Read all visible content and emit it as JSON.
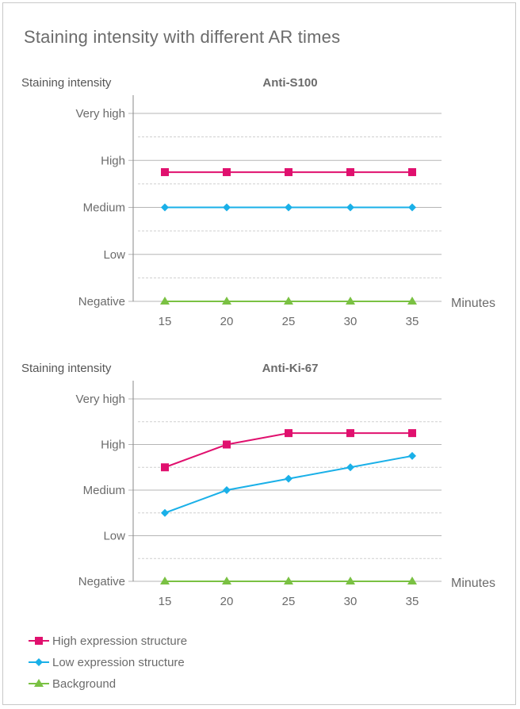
{
  "page": {
    "title": "Staining intensity with different AR times"
  },
  "levels": [
    "Negative",
    "Low",
    "Medium",
    "High",
    "Very high"
  ],
  "colors": {
    "high": "#e0106e",
    "low": "#1ab0e8",
    "background": "#7ac143",
    "grid": "#b5b5b5",
    "minor_grid": "#cfcfcf"
  },
  "chart_data": [
    {
      "type": "line",
      "title": "Anti-S100",
      "ylabel": "Staining intensity",
      "xlabel": "Minutes",
      "x": [
        15,
        20,
        25,
        30,
        35
      ],
      "ylim": [
        0,
        4
      ],
      "yticks": [
        "Negative",
        "Low",
        "Medium",
        "High",
        "Very high"
      ],
      "series": [
        {
          "name": "High expression structure",
          "key": "high",
          "marker": "square",
          "values": [
            2.75,
            2.75,
            2.75,
            2.75,
            2.75
          ]
        },
        {
          "name": "Low expression structure",
          "key": "low",
          "marker": "diamond",
          "values": [
            2,
            2,
            2,
            2,
            2
          ]
        },
        {
          "name": "Background",
          "key": "background",
          "marker": "triangle",
          "values": [
            0,
            0,
            0,
            0,
            0
          ]
        }
      ]
    },
    {
      "type": "line",
      "title": "Anti-Ki-67",
      "ylabel": "Staining intensity",
      "xlabel": "Minutes",
      "x": [
        15,
        20,
        25,
        30,
        35
      ],
      "ylim": [
        0,
        4
      ],
      "yticks": [
        "Negative",
        "Low",
        "Medium",
        "High",
        "Very high"
      ],
      "series": [
        {
          "name": "High expression structure",
          "key": "high",
          "marker": "square",
          "values": [
            2.5,
            3,
            3.25,
            3.25,
            3.25
          ]
        },
        {
          "name": "Low expression structure",
          "key": "low",
          "marker": "diamond",
          "values": [
            1.5,
            2,
            2.25,
            2.5,
            2.75
          ]
        },
        {
          "name": "Background",
          "key": "background",
          "marker": "triangle",
          "values": [
            0,
            0,
            0,
            0,
            0
          ]
        }
      ]
    }
  ],
  "legend": [
    {
      "label": "High expression structure",
      "key": "high",
      "marker": "square"
    },
    {
      "label": "Low expression structure",
      "key": "low",
      "marker": "diamond"
    },
    {
      "label": "Background",
      "key": "background",
      "marker": "triangle"
    }
  ]
}
